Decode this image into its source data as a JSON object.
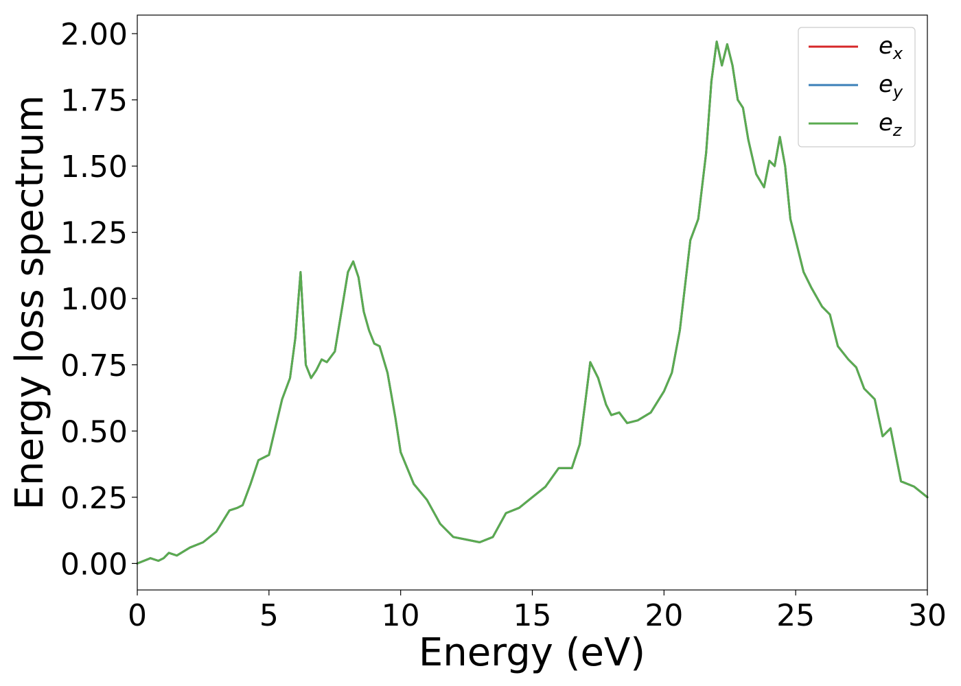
{
  "chart_data": {
    "type": "line",
    "title": "",
    "xlabel": "Energy (eV)",
    "ylabel": "Energy loss spectrum",
    "xlim": [
      0,
      30
    ],
    "ylim": [
      -0.1,
      2.07
    ],
    "x_ticks": [
      0,
      5,
      10,
      15,
      20,
      25,
      30
    ],
    "x_tick_labels": [
      "0",
      "5",
      "10",
      "15",
      "20",
      "25",
      "30"
    ],
    "y_ticks": [
      0,
      0.25,
      0.5,
      0.75,
      1.0,
      1.25,
      1.5,
      1.75,
      2.0
    ],
    "y_tick_labels": [
      "0.00",
      "0.25",
      "0.50",
      "0.75",
      "1.00",
      "1.25",
      "1.50",
      "1.75",
      "2.00"
    ],
    "grid": false,
    "legend_position": "top-right",
    "colors": {
      "e_x": "#d62728",
      "e_y": "#3a7fb8",
      "e_z": "#5aab50"
    },
    "x": [
      0,
      0.5,
      0.8,
      1.0,
      1.2,
      1.5,
      2.0,
      2.5,
      3.0,
      3.5,
      3.8,
      4.0,
      4.3,
      4.6,
      5.0,
      5.5,
      5.8,
      6.0,
      6.2,
      6.4,
      6.6,
      6.8,
      7.0,
      7.2,
      7.5,
      7.8,
      8.0,
      8.2,
      8.4,
      8.6,
      8.8,
      9.0,
      9.2,
      9.5,
      9.8,
      10.0,
      10.5,
      11.0,
      11.5,
      12.0,
      12.5,
      13.0,
      13.5,
      14.0,
      14.5,
      15.0,
      15.5,
      16.0,
      16.5,
      16.8,
      17.0,
      17.2,
      17.5,
      17.8,
      18.0,
      18.3,
      18.6,
      19.0,
      19.5,
      20.0,
      20.3,
      20.6,
      21.0,
      21.3,
      21.6,
      21.8,
      22.0,
      22.2,
      22.4,
      22.6,
      22.8,
      23.0,
      23.2,
      23.5,
      23.8,
      24.0,
      24.2,
      24.4,
      24.6,
      24.8,
      25.0,
      25.3,
      25.6,
      26.0,
      26.3,
      26.6,
      27.0,
      27.3,
      27.6,
      28.0,
      28.3,
      28.6,
      29.0,
      29.5,
      30.0
    ],
    "series": [
      {
        "name": "e_x",
        "values": [
          0.0,
          0.02,
          0.01,
          0.02,
          0.04,
          0.03,
          0.06,
          0.08,
          0.12,
          0.2,
          0.21,
          0.22,
          0.3,
          0.39,
          0.41,
          0.62,
          0.7,
          0.85,
          1.1,
          0.75,
          0.7,
          0.73,
          0.77,
          0.76,
          0.8,
          0.98,
          1.1,
          1.14,
          1.08,
          0.95,
          0.88,
          0.83,
          0.82,
          0.72,
          0.55,
          0.42,
          0.3,
          0.24,
          0.15,
          0.1,
          0.09,
          0.08,
          0.1,
          0.19,
          0.21,
          0.25,
          0.29,
          0.36,
          0.36,
          0.45,
          0.6,
          0.76,
          0.7,
          0.6,
          0.56,
          0.57,
          0.53,
          0.54,
          0.57,
          0.65,
          0.72,
          0.88,
          1.22,
          1.3,
          1.55,
          1.82,
          1.97,
          1.88,
          1.96,
          1.88,
          1.75,
          1.72,
          1.6,
          1.47,
          1.42,
          1.52,
          1.5,
          1.61,
          1.5,
          1.3,
          1.22,
          1.1,
          1.04,
          0.97,
          0.94,
          0.82,
          0.77,
          0.74,
          0.66,
          0.62,
          0.48,
          0.51,
          0.31,
          0.29,
          0.25
        ]
      },
      {
        "name": "e_y",
        "values": [
          0.0,
          0.02,
          0.01,
          0.02,
          0.04,
          0.03,
          0.06,
          0.08,
          0.12,
          0.2,
          0.21,
          0.22,
          0.3,
          0.39,
          0.41,
          0.62,
          0.7,
          0.85,
          1.1,
          0.75,
          0.7,
          0.73,
          0.77,
          0.76,
          0.8,
          0.98,
          1.1,
          1.14,
          1.08,
          0.95,
          0.88,
          0.83,
          0.82,
          0.72,
          0.55,
          0.42,
          0.3,
          0.24,
          0.15,
          0.1,
          0.09,
          0.08,
          0.1,
          0.19,
          0.21,
          0.25,
          0.29,
          0.36,
          0.36,
          0.45,
          0.6,
          0.76,
          0.7,
          0.6,
          0.56,
          0.57,
          0.53,
          0.54,
          0.57,
          0.65,
          0.72,
          0.88,
          1.22,
          1.3,
          1.55,
          1.82,
          1.97,
          1.88,
          1.96,
          1.88,
          1.75,
          1.72,
          1.6,
          1.47,
          1.42,
          1.52,
          1.5,
          1.61,
          1.5,
          1.3,
          1.22,
          1.1,
          1.04,
          0.97,
          0.94,
          0.82,
          0.77,
          0.74,
          0.66,
          0.62,
          0.48,
          0.51,
          0.31,
          0.29,
          0.25
        ]
      },
      {
        "name": "e_z",
        "values": [
          0.0,
          0.02,
          0.01,
          0.02,
          0.04,
          0.03,
          0.06,
          0.08,
          0.12,
          0.2,
          0.21,
          0.22,
          0.3,
          0.39,
          0.41,
          0.62,
          0.7,
          0.85,
          1.1,
          0.75,
          0.7,
          0.73,
          0.77,
          0.76,
          0.8,
          0.98,
          1.1,
          1.14,
          1.08,
          0.95,
          0.88,
          0.83,
          0.82,
          0.72,
          0.55,
          0.42,
          0.3,
          0.24,
          0.15,
          0.1,
          0.09,
          0.08,
          0.1,
          0.19,
          0.21,
          0.25,
          0.29,
          0.36,
          0.36,
          0.45,
          0.6,
          0.76,
          0.7,
          0.6,
          0.56,
          0.57,
          0.53,
          0.54,
          0.57,
          0.65,
          0.72,
          0.88,
          1.22,
          1.3,
          1.55,
          1.82,
          1.97,
          1.88,
          1.96,
          1.88,
          1.75,
          1.72,
          1.6,
          1.47,
          1.42,
          1.52,
          1.5,
          1.61,
          1.5,
          1.3,
          1.22,
          1.1,
          1.04,
          0.97,
          0.94,
          0.82,
          0.77,
          0.74,
          0.66,
          0.62,
          0.48,
          0.51,
          0.31,
          0.29,
          0.25
        ]
      }
    ],
    "legend": [
      {
        "base": "e",
        "sub": "x"
      },
      {
        "base": "e",
        "sub": "y"
      },
      {
        "base": "e",
        "sub": "z"
      }
    ]
  }
}
